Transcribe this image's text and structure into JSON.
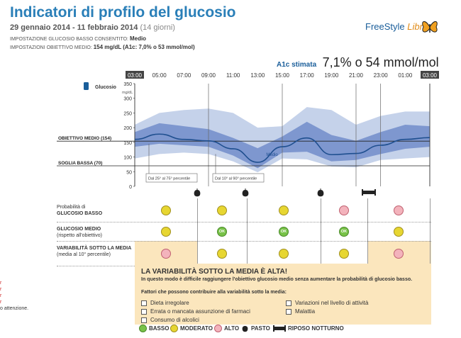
{
  "header": {
    "title": "Indicatori di profilo del glucosio",
    "date_range": "29 gennaio 2014 - 11 febbraio 2014",
    "days": "(14 giorni)",
    "low_setting_label": "IMPOSTAZIONE GLUCOSIO BASSO CONSENTITO:",
    "low_setting_value": "Medio",
    "target_label": "IMPOSTAZIONI OBIETTIVO MEDIO:",
    "target_value": "154 mg/dL",
    "target_extra": "(A1c: 7,0% o 53 mmol/mol)",
    "brand_text": "FreeStyle",
    "brand_italic": "Libre",
    "a1c_label": "A1c stimata",
    "a1c_value": "7,1% o 54 mmol/mol"
  },
  "chart": {
    "hours": [
      "03:00",
      "05:00",
      "07:00",
      "09:00",
      "11:00",
      "13:00",
      "15:00",
      "17:00",
      "19:00",
      "21:00",
      "23:00",
      "01:00",
      "03:00"
    ],
    "glucose_label": "Glucosio",
    "unit": "mg/dL",
    "y_ticks": [
      "350",
      "300",
      "250",
      "200",
      "150",
      "100",
      "50",
      "0"
    ],
    "target_label": "OBIETTIVO MEDIO (154)",
    "low_label": "SOGLIA BASSA (70)",
    "median_label": "Medio",
    "legend_iqr": "Dal 25° al 75° percentile",
    "legend_10_90": "Dal 10° al 90° percentile"
  },
  "chart_data": {
    "type": "area",
    "x": [
      "03:00",
      "05:00",
      "07:00",
      "09:00",
      "11:00",
      "13:00",
      "15:00",
      "17:00",
      "19:00",
      "21:00",
      "23:00",
      "01:00",
      "03:00"
    ],
    "ylim": [
      0,
      350
    ],
    "ylabel": "Glucosio",
    "series": [
      {
        "name": "Medio",
        "values": [
          160,
          178,
          160,
          155,
          128,
          82,
          135,
          165,
          108,
          112,
          140,
          160,
          166
        ]
      },
      {
        "name": "Dal 25° al 75° percentile",
        "low": [
          135,
          145,
          140,
          135,
          105,
          62,
          115,
          118,
          85,
          90,
          110,
          128,
          135
        ],
        "high": [
          185,
          215,
          205,
          195,
          165,
          130,
          170,
          220,
          175,
          155,
          185,
          210,
          205
        ]
      },
      {
        "name": "Dal 10° al 90° percentile",
        "low": [
          95,
          110,
          115,
          110,
          85,
          48,
          95,
          92,
          68,
          65,
          90,
          95,
          100
        ],
        "high": [
          210,
          250,
          260,
          265,
          250,
          200,
          205,
          270,
          260,
          210,
          240,
          255,
          255
        ]
      }
    ],
    "reference_lines": [
      {
        "label": "OBIETTIVO MEDIO (154)",
        "value": 154
      },
      {
        "label": "SOGLIA BASSA (70)",
        "value": 70
      }
    ]
  },
  "risk": {
    "rows": [
      {
        "title": "GLUCOSIO BASSO",
        "subtitle": "Probabilità di"
      },
      {
        "title": "GLUCOSIO MEDIO",
        "subtitle": "(rispetto all'obiettivo)"
      },
      {
        "title": "VARIABILITÀ SOTTO LA MEDIA",
        "subtitle": "(media al 10° percentile)"
      }
    ],
    "ok_label": "OK",
    "cells": [
      [
        "moderate",
        "moderate",
        "moderate",
        "high",
        "high"
      ],
      [
        "moderate",
        "ok",
        "ok",
        "ok",
        "moderate"
      ],
      [
        "high",
        "moderate",
        "moderate",
        "moderate",
        "high"
      ]
    ]
  },
  "warning": {
    "title": "LA VARIABILITÀ SOTTO LA MEDIA È ALTA!",
    "subtitle": "In questo modo è difficile raggiungere l'obiettivo glucosio medio senza aumentare la probabilità di glucosio basso.",
    "factors_heading": "Fattori che possono contribuire alla variabilità sotto la media:",
    "factors": [
      "Dieta irregolare",
      "Errata o mancata assunzione di farmaci",
      "Consumo di alcolici",
      "Variazioni nel livello di attività",
      "Malattia"
    ]
  },
  "legend": {
    "basso": "BASSO",
    "moderato": "MODERATO",
    "alto": "ALTO",
    "pasto": "PASTO",
    "riposo": "RIPOSO NOTTURNO"
  },
  "colors": {
    "title": "#2a7fb8",
    "band_outer": "#c5d2ea",
    "band_inner": "#7e97cf",
    "median": "#1f4f8f",
    "moderate": "#e7d631",
    "high": "#f3b3bc",
    "ok": "#78c248",
    "warning_bg": "#fbe6bd"
  },
  "left_edge": [
    "r",
    "r",
    "r",
    "r",
    "o attenzione."
  ]
}
